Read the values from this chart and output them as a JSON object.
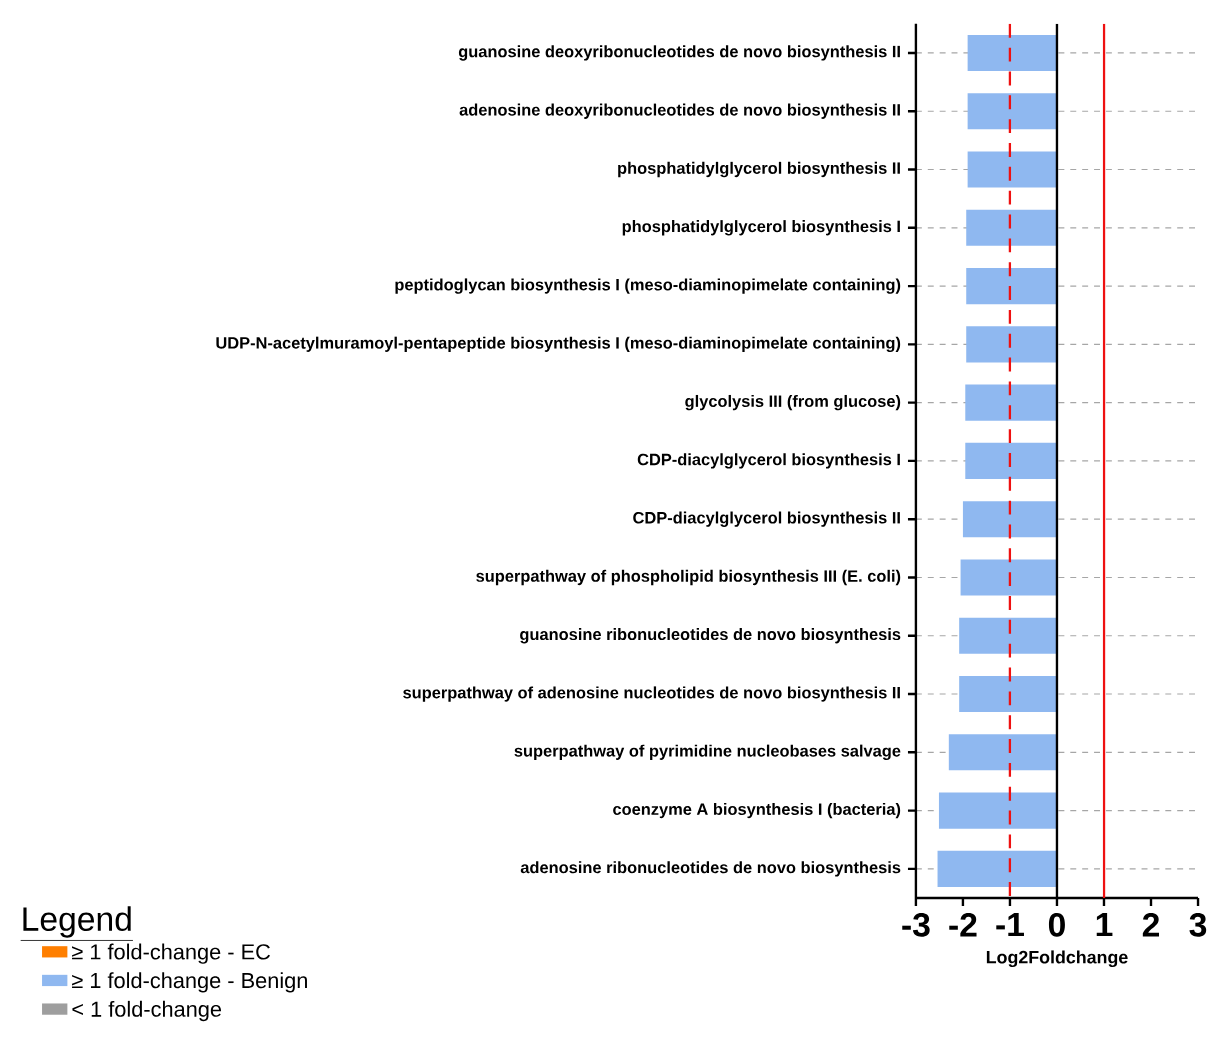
{
  "chart_data": {
    "type": "bar",
    "orientation": "horizontal",
    "xlabel": "Log2Foldchange",
    "legend_title": "Legend",
    "categories": [
      "guanosine deoxyribonucleotides de novo biosynthesis II",
      "adenosine deoxyribonucleotides de novo biosynthesis II",
      "phosphatidylglycerol biosynthesis II",
      "phosphatidylglycerol biosynthesis I",
      "peptidoglycan biosynthesis I (meso-diaminopimelate containing)",
      "UDP-N-acetylmuramoyl-pentapeptide biosynthesis I (meso-diaminopimelate containing)",
      "glycolysis III (from glucose)",
      "CDP-diacylglycerol biosynthesis I",
      "CDP-diacylglycerol biosynthesis II",
      "superpathway of phospholipid biosynthesis III (E. coli)",
      "guanosine ribonucleotides de novo biosynthesis",
      "superpathway of adenosine nucleotides de novo biosynthesis II",
      "superpathway of pyrimidine nucleobases salvage",
      "coenzyme A biosynthesis I (bacteria)",
      "adenosine ribonucleotides de novo biosynthesis"
    ],
    "series": [
      {
        "name": "≥ 1 fold-change - EC",
        "color": "#ff7f00",
        "values": [
          null,
          null,
          null,
          null,
          null,
          null,
          null,
          null,
          null,
          null,
          null,
          null,
          null,
          null,
          null
        ]
      },
      {
        "name": "≥ 1 fold-change - Benign",
        "color": "#8fb8f0",
        "values": [
          -1.9,
          -1.9,
          -1.9,
          -1.93,
          -1.93,
          -1.93,
          -1.95,
          -1.95,
          -2.0,
          -2.05,
          -2.08,
          -2.08,
          -2.3,
          -2.51,
          -2.54
        ]
      },
      {
        "name": "< 1 fold-change",
        "color": "#9e9e9e",
        "values": [
          null,
          null,
          null,
          null,
          null,
          null,
          null,
          null,
          null,
          null,
          null,
          null,
          null,
          null,
          null
        ]
      }
    ],
    "xlim": [
      -3,
      3
    ],
    "xticks": [
      -3,
      -2,
      -1,
      0,
      1,
      2,
      3
    ],
    "grid": "y",
    "legend": "bottom left",
    "ref_lines": [
      {
        "axis": "x",
        "value": -1,
        "color": "#ee1111",
        "line_style": "dashed"
      },
      {
        "axis": "x",
        "value": 0,
        "color": "#000000",
        "line_style": "solid"
      },
      {
        "axis": "x",
        "value": 1,
        "color": "#ee1111",
        "line_style": "solid"
      }
    ]
  }
}
